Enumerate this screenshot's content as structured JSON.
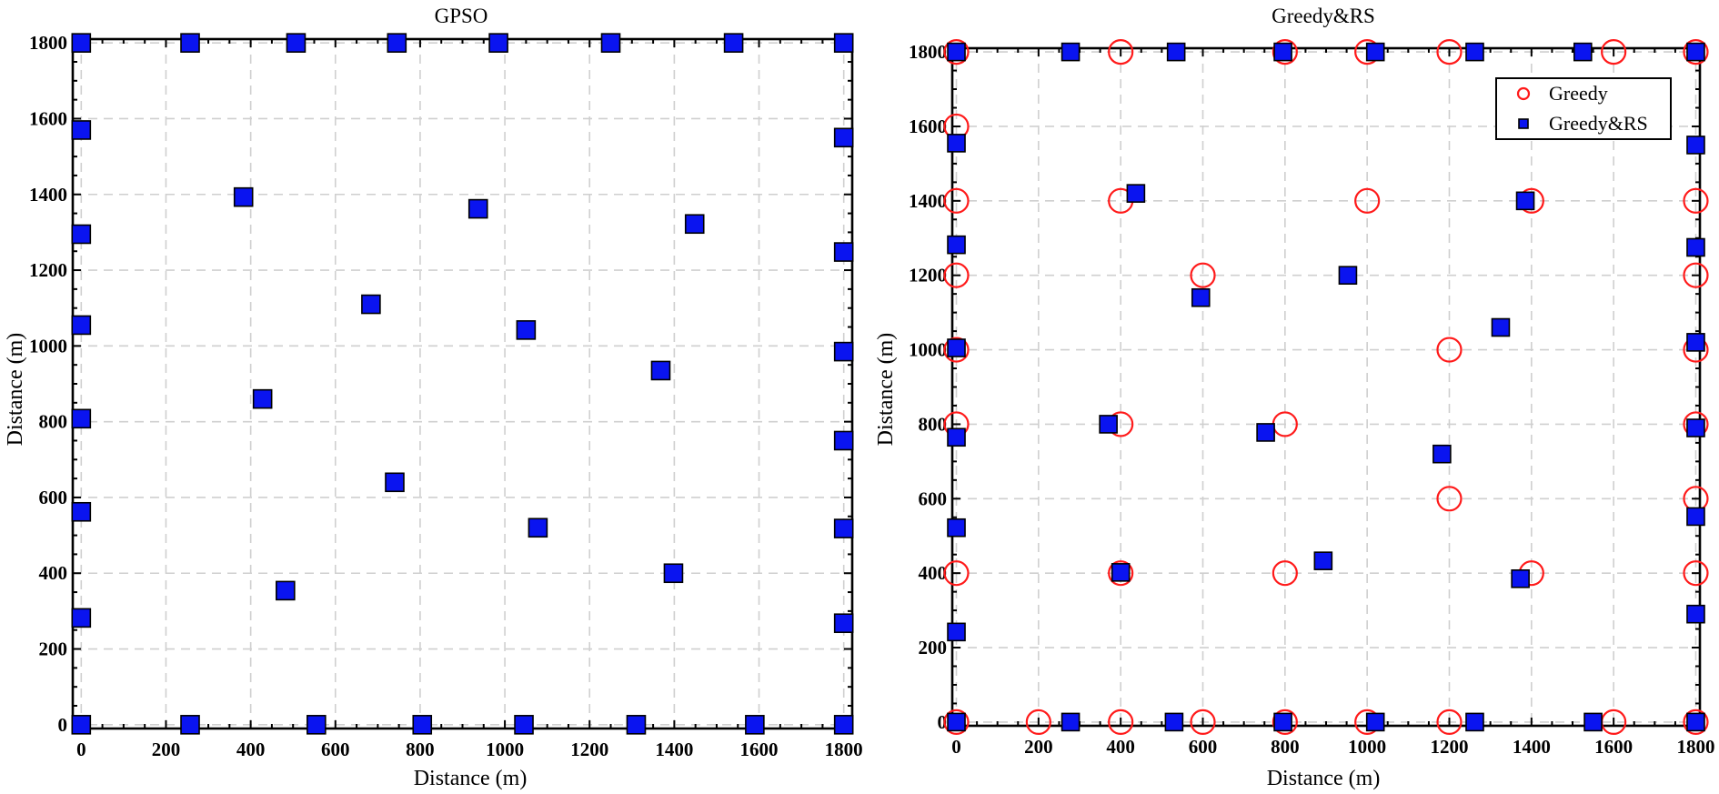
{
  "chart_data": [
    {
      "type": "scatter",
      "title": "GPSO",
      "xlabel": "Distance (m)",
      "ylabel": "Distance (m)",
      "xlim": [
        -20,
        1820
      ],
      "ylim": [
        -10,
        1810
      ],
      "xticks": [
        0,
        200,
        400,
        600,
        800,
        1000,
        1200,
        1400,
        1600,
        1800
      ],
      "yticks": [
        0,
        200,
        400,
        600,
        800,
        1000,
        1200,
        1400,
        1600,
        1800
      ],
      "grid": true,
      "series": [
        {
          "marker": "square",
          "color": "#0a14f0",
          "points": [
            [
              0,
              1800
            ],
            [
              257,
              1800
            ],
            [
              507,
              1800
            ],
            [
              745,
              1800
            ],
            [
              985,
              1800
            ],
            [
              1250,
              1800
            ],
            [
              1540,
              1800
            ],
            [
              1800,
              1800
            ],
            [
              0,
              1570
            ],
            [
              0,
              1295
            ],
            [
              0,
              1055
            ],
            [
              0,
              808
            ],
            [
              0,
              562
            ],
            [
              0,
              282
            ],
            [
              0,
              0
            ],
            [
              257,
              0
            ],
            [
              555,
              0
            ],
            [
              805,
              0
            ],
            [
              1045,
              0
            ],
            [
              1310,
              0
            ],
            [
              1590,
              0
            ],
            [
              1800,
              0
            ],
            [
              1800,
              1550
            ],
            [
              1800,
              1248
            ],
            [
              1800,
              985
            ],
            [
              1800,
              750
            ],
            [
              1800,
              518
            ],
            [
              1800,
              268
            ],
            [
              383,
              1393
            ],
            [
              937,
              1362
            ],
            [
              1448,
              1322
            ],
            [
              684,
              1110
            ],
            [
              1050,
              1042
            ],
            [
              1368,
              935
            ],
            [
              428,
              860
            ],
            [
              740,
              640
            ],
            [
              1078,
              520
            ],
            [
              1398,
              400
            ],
            [
              482,
              354
            ]
          ]
        }
      ]
    },
    {
      "type": "scatter",
      "title": "Greedy&RS",
      "xlabel": "Distance (m)",
      "ylabel": "Distance (m)",
      "xlim": [
        -10,
        1810
      ],
      "ylim": [
        -10,
        1810
      ],
      "xticks": [
        0,
        200,
        400,
        600,
        800,
        1000,
        1200,
        1400,
        1600,
        1800
      ],
      "yticks": [
        0,
        200,
        400,
        600,
        800,
        1000,
        1200,
        1400,
        1600,
        1800
      ],
      "grid": true,
      "legend_position": "top-right",
      "series": [
        {
          "name": "Greedy",
          "marker": "circle",
          "color": "#ff1a1a",
          "points": [
            [
              0,
              1800
            ],
            [
              400,
              1800
            ],
            [
              800,
              1800
            ],
            [
              1000,
              1800
            ],
            [
              1200,
              1800
            ],
            [
              1600,
              1800
            ],
            [
              1800,
              1800
            ],
            [
              0,
              1600
            ],
            [
              0,
              1400
            ],
            [
              400,
              1400
            ],
            [
              1000,
              1400
            ],
            [
              1400,
              1400
            ],
            [
              1800,
              1400
            ],
            [
              0,
              1200
            ],
            [
              600,
              1200
            ],
            [
              1800,
              1200
            ],
            [
              0,
              1000
            ],
            [
              1200,
              1000
            ],
            [
              1800,
              1000
            ],
            [
              0,
              800
            ],
            [
              400,
              800
            ],
            [
              800,
              800
            ],
            [
              1800,
              800
            ],
            [
              1200,
              600
            ],
            [
              1800,
              600
            ],
            [
              0,
              400
            ],
            [
              400,
              400
            ],
            [
              800,
              400
            ],
            [
              1400,
              400
            ],
            [
              1800,
              400
            ],
            [
              0,
              0
            ],
            [
              200,
              0
            ],
            [
              400,
              0
            ],
            [
              600,
              0
            ],
            [
              800,
              0
            ],
            [
              1000,
              0
            ],
            [
              1200,
              0
            ],
            [
              1600,
              0
            ],
            [
              1800,
              0
            ]
          ]
        },
        {
          "name": "Greedy&RS",
          "marker": "square",
          "color": "#0a14f0",
          "points": [
            [
              0,
              1800
            ],
            [
              278,
              1800
            ],
            [
              535,
              1800
            ],
            [
              795,
              1800
            ],
            [
              1020,
              1800
            ],
            [
              1262,
              1800
            ],
            [
              1525,
              1800
            ],
            [
              1800,
              1800
            ],
            [
              0,
              1555
            ],
            [
              0,
              1282
            ],
            [
              0,
              1005
            ],
            [
              0,
              765
            ],
            [
              0,
              522
            ],
            [
              0,
              242
            ],
            [
              0,
              0
            ],
            [
              278,
              0
            ],
            [
              530,
              0
            ],
            [
              795,
              0
            ],
            [
              1020,
              0
            ],
            [
              1262,
              0
            ],
            [
              1550,
              0
            ],
            [
              1800,
              0
            ],
            [
              1800,
              1550
            ],
            [
              1800,
              1275
            ],
            [
              1800,
              1020
            ],
            [
              1800,
              790
            ],
            [
              1800,
              552
            ],
            [
              1800,
              290
            ],
            [
              437,
              1420
            ],
            [
              1385,
              1400
            ],
            [
              595,
              1140
            ],
            [
              953,
              1200
            ],
            [
              1325,
              1060
            ],
            [
              370,
              800
            ],
            [
              753,
              778
            ],
            [
              1182,
              720
            ],
            [
              400,
              402
            ],
            [
              893,
              433
            ],
            [
              1373,
              385
            ]
          ]
        }
      ]
    }
  ]
}
